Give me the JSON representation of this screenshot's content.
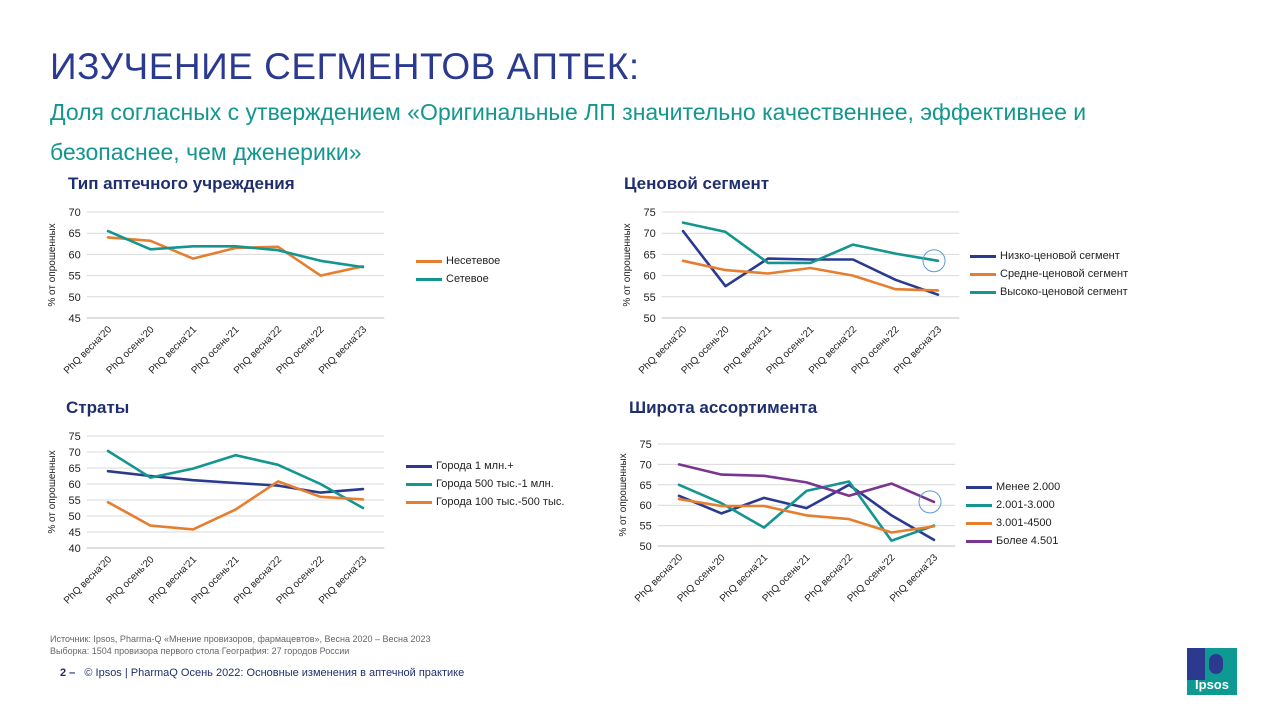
{
  "header": {
    "title": "ИЗУЧЕНИЕ СЕГМЕНТОВ АПТЕК:",
    "subtitle": "Доля согласных с утверждением «Оригинальные ЛП значительно качественнее, эффективнее и безопаснее, чем дженерики»"
  },
  "colors": {
    "title": "#2b3a8f",
    "subtitle": "#13968f",
    "navy": "#2b3a8f",
    "teal": "#13968f",
    "orange": "#e67e30",
    "purple": "#7a3590"
  },
  "chart_data": [
    {
      "id": "pharmacy-type",
      "type": "line",
      "title": "Тип аптечного учреждения",
      "ylabel": "% от опрошенных",
      "categories": [
        "PhQ весна'20",
        "PhQ осень'20",
        "PhQ весна'21",
        "PhQ осень'21",
        "PhQ весна'22",
        "PhQ осень'22",
        "PhQ весна'23"
      ],
      "ylim": [
        45,
        70
      ],
      "yticks": [
        45,
        50,
        55,
        60,
        65,
        70
      ],
      "grid": true,
      "legend_position": "right",
      "series": [
        {
          "name": "Несетевое",
          "color": "#e67e30",
          "values": [
            64.0,
            63.2,
            59.0,
            61.5,
            61.8,
            55.0,
            57.2
          ]
        },
        {
          "name": "Сетевое",
          "color": "#13968f",
          "values": [
            65.5,
            61.2,
            61.9,
            61.9,
            61.0,
            58.5,
            57.0
          ]
        }
      ]
    },
    {
      "id": "price-segment",
      "type": "line",
      "title": "Ценовой сегмент",
      "ylabel": "% от опрошенных",
      "categories": [
        "PhQ весна'20",
        "PhQ осень'20",
        "PhQ весна'21",
        "PhQ осень'21",
        "PhQ весна'22",
        "PhQ осень'22",
        "PhQ весна'23"
      ],
      "ylim": [
        50,
        75
      ],
      "yticks": [
        50,
        55,
        60,
        65,
        70,
        75
      ],
      "grid": true,
      "legend_position": "right",
      "highlight": {
        "series": 2,
        "index": 6
      },
      "series": [
        {
          "name": "Низко-ценовой сегмент",
          "color": "#2b3a8f",
          "values": [
            70.5,
            57.5,
            64.0,
            63.8,
            63.8,
            59.0,
            55.5
          ]
        },
        {
          "name": "Средне-ценовой сегмент",
          "color": "#e67e30",
          "values": [
            63.5,
            61.3,
            60.5,
            61.8,
            60.0,
            56.8,
            56.5
          ]
        },
        {
          "name": "Высоко-ценовой сегмент",
          "color": "#13968f",
          "values": [
            72.5,
            70.3,
            63.0,
            63.0,
            67.3,
            65.2,
            63.5
          ]
        }
      ]
    },
    {
      "id": "strata",
      "type": "line",
      "title": "Страты",
      "ylabel": "% от опрошенных",
      "categories": [
        "PhQ весна'20",
        "PhQ осень'20",
        "PhQ весна'21",
        "PhQ осень'21",
        "PhQ весна'22",
        "PhQ осень'22",
        "PhQ весна'23"
      ],
      "ylim": [
        40,
        75
      ],
      "yticks": [
        40,
        45,
        50,
        55,
        60,
        65,
        70,
        75
      ],
      "grid": true,
      "legend_position": "right",
      "series": [
        {
          "name": "Города 1 млн.+",
          "color": "#2b3a8f",
          "values": [
            64.0,
            62.5,
            61.2,
            60.3,
            59.5,
            57.3,
            58.4
          ]
        },
        {
          "name": "Города 500 тыс.-1 млн.",
          "color": "#13968f",
          "values": [
            70.3,
            62.0,
            64.8,
            69.0,
            66.0,
            60.0,
            52.5
          ]
        },
        {
          "name": "Города 100 тыс.-500 тыс.",
          "color": "#e67e30",
          "values": [
            54.3,
            47.0,
            45.8,
            52.0,
            60.8,
            56.0,
            55.2
          ]
        }
      ]
    },
    {
      "id": "assortment",
      "type": "line",
      "title": "Широта ассортимента",
      "ylabel": "% от опрошенных",
      "categories": [
        "PhQ весна'20",
        "PhQ осень'20",
        "PhQ весна'21",
        "PhQ осень'21",
        "PhQ весна'22",
        "PhQ осень'22",
        "PhQ весна'23"
      ],
      "ylim": [
        50,
        75
      ],
      "yticks": [
        50,
        55,
        60,
        65,
        70,
        75
      ],
      "grid": true,
      "legend_position": "right",
      "highlight": {
        "series": 3,
        "index": 6
      },
      "series": [
        {
          "name": "Менее 2.000",
          "color": "#2b3a8f",
          "values": [
            62.3,
            58.0,
            61.8,
            59.3,
            65.0,
            57.5,
            51.5
          ]
        },
        {
          "name": "2.001-3.000",
          "color": "#13968f",
          "values": [
            65.0,
            60.5,
            54.5,
            63.5,
            65.8,
            51.3,
            55.0
          ]
        },
        {
          "name": "3.001-4500",
          "color": "#e67e30",
          "values": [
            61.5,
            59.8,
            59.8,
            57.5,
            56.6,
            53.3,
            54.8
          ]
        },
        {
          "name": "Более 4.501",
          "color": "#7a3590",
          "values": [
            70.0,
            67.5,
            67.2,
            65.6,
            62.3,
            65.3,
            60.8
          ]
        }
      ]
    }
  ],
  "footer": {
    "source_line1": "Источник: Ipsos, Pharma-Q «Мнение провизоров, фармацевтов», Весна 2020 – Весна 2023",
    "source_line2": "Выборка: 1504 провизора первого стола  География: 27 городов России",
    "page_number": "2 –",
    "copyright": "© Ipsos | PharmaQ Осень 2022: Основные изменения в аптечной практике",
    "logo_text": "Ipsos"
  }
}
